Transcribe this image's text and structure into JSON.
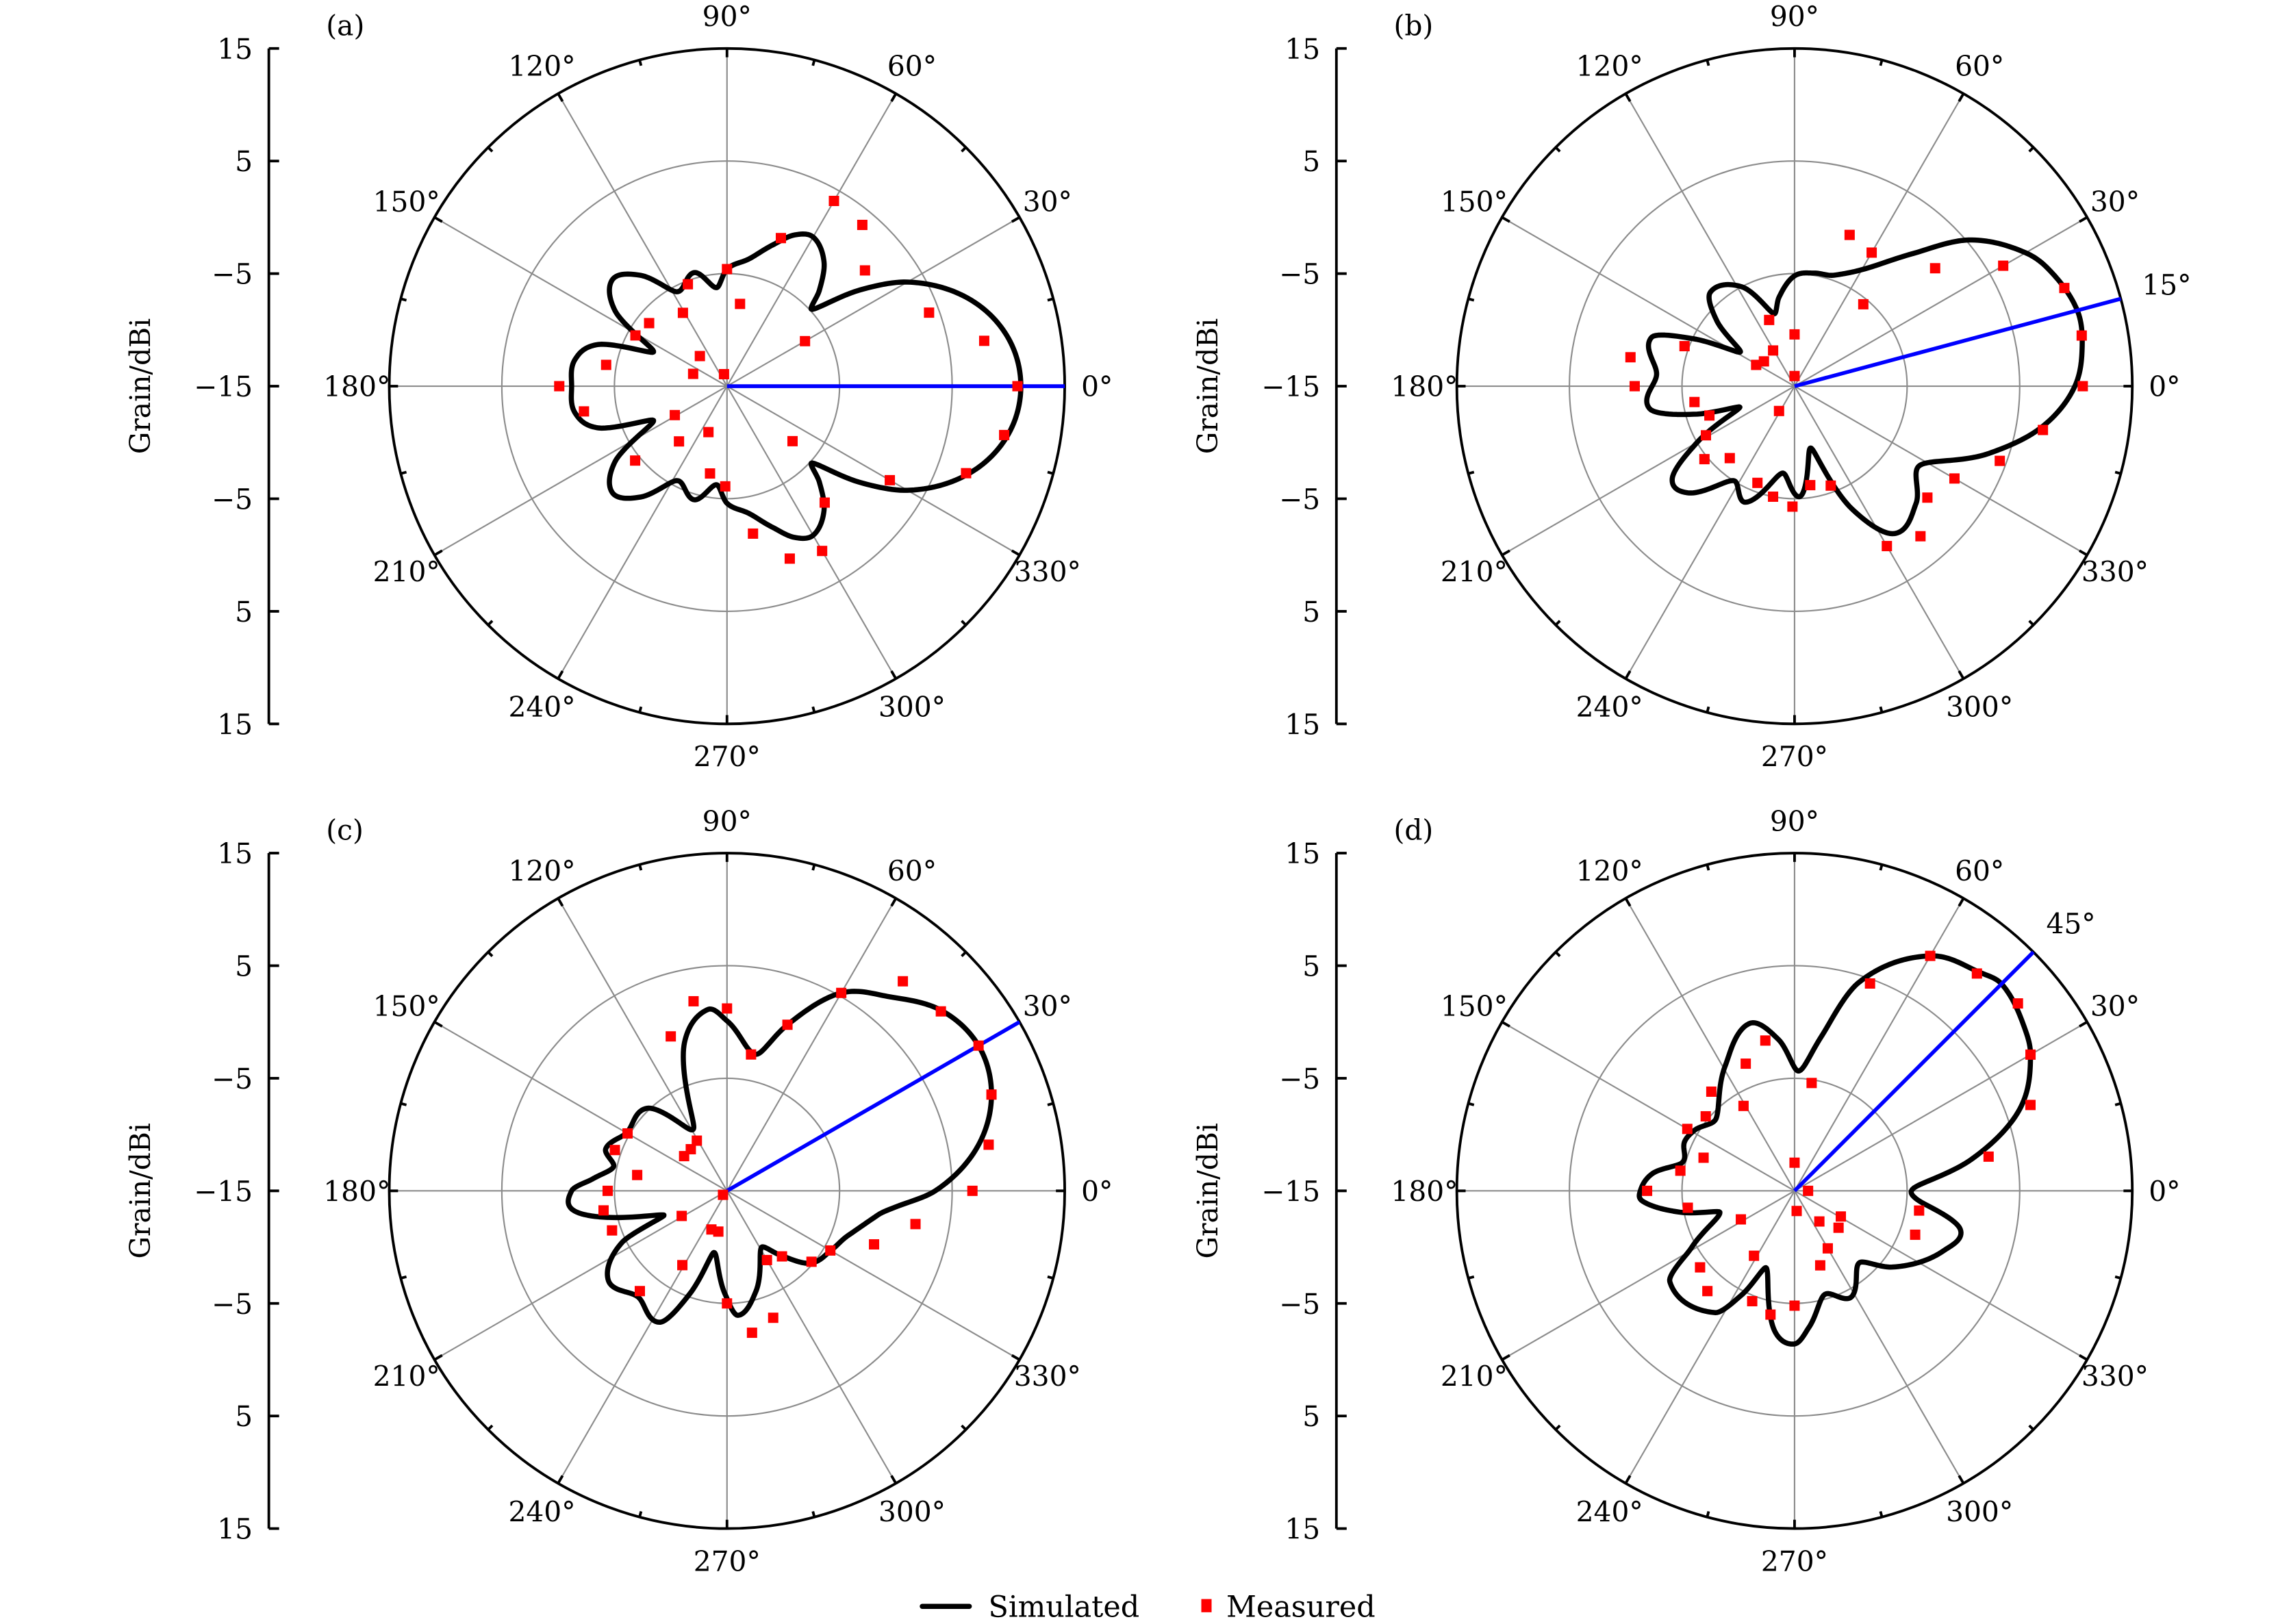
{
  "chart_data": {
    "type": "polar",
    "ylabel": "Grain/dBi",
    "radial_range": [
      -15,
      15
    ],
    "radial_ticks": [
      "15",
      "5",
      "−5",
      "−15",
      "−5",
      "5",
      "15"
    ],
    "angle_ticks": [
      "0°",
      "30°",
      "60°",
      "90°",
      "120°",
      "150°",
      "180°",
      "210°",
      "240°",
      "270°",
      "300°",
      "330°"
    ],
    "grid": true,
    "legend": {
      "position": "bottom-center",
      "entries": [
        "Simulated",
        "Measured"
      ]
    },
    "colors": {
      "simulated": "#000000",
      "measured": "#ff0000",
      "beam": "#0000ff",
      "grid": "#8c8c8c"
    },
    "panels": [
      {
        "label": "(a)",
        "beam_angle": 0,
        "beam_label": "",
        "simulated": [
          [
            0,
            11.1
          ],
          [
            10,
            10.3
          ],
          [
            20,
            7.8
          ],
          [
            30,
            3.5
          ],
          [
            36,
            -0.5
          ],
          [
            42,
            -4.8
          ],
          [
            46,
            -3.2
          ],
          [
            52,
            -1
          ],
          [
            60,
            0.3
          ],
          [
            66,
            -0.3
          ],
          [
            72,
            -1.8
          ],
          [
            80,
            -3.5
          ],
          [
            90,
            -4.6
          ],
          [
            96,
            -6.2
          ],
          [
            106,
            -4.5
          ],
          [
            118,
            -5.5
          ],
          [
            128,
            -2.5
          ],
          [
            137,
            -1.1
          ],
          [
            146,
            -3
          ],
          [
            155,
            -7.8
          ],
          [
            162,
            -3
          ],
          [
            170,
            -1.3
          ],
          [
            180,
            -1.2
          ],
          [
            190,
            -1.3
          ],
          [
            198,
            -3
          ],
          [
            205,
            -7.8
          ],
          [
            214,
            -3
          ],
          [
            223,
            -1.1
          ],
          [
            232,
            -2.5
          ],
          [
            242,
            -5.5
          ],
          [
            254,
            -4.5
          ],
          [
            264,
            -6.2
          ],
          [
            270,
            -4.6
          ],
          [
            280,
            -3.5
          ],
          [
            288,
            -1.8
          ],
          [
            294,
            -0.3
          ],
          [
            300,
            0.3
          ],
          [
            308,
            -1
          ],
          [
            314,
            -3.2
          ],
          [
            318,
            -4.8
          ],
          [
            324,
            -0.5
          ],
          [
            330,
            3.5
          ],
          [
            340,
            7.8
          ],
          [
            350,
            10.3
          ]
        ],
        "measured": [
          [
            60,
            4.0
          ],
          [
            50,
            3.7
          ],
          [
            40,
            1.0
          ],
          [
            20,
            4.1
          ],
          [
            10,
            8.2
          ],
          [
            0,
            10.8
          ],
          [
            350,
            10.0
          ],
          [
            340,
            7.6
          ],
          [
            330,
            1.7
          ],
          [
            300,
            1.9
          ],
          [
            290,
            1.3
          ],
          [
            280,
            -1.7
          ],
          [
            310,
            -1.5
          ],
          [
            320,
            -7.4
          ],
          [
            269,
            -6.1
          ],
          [
            259,
            -7.1
          ],
          [
            248,
            -10.6
          ],
          [
            229,
            -8.5
          ],
          [
            209,
            -9.7
          ],
          [
            219,
            -4.5
          ],
          [
            190,
            -2.1
          ],
          [
            180,
            -0.1
          ],
          [
            170,
            -4.1
          ],
          [
            160,
            -11.8
          ],
          [
            104,
            -13.9
          ],
          [
            132,
            -11.4
          ],
          [
            151,
            -5.7
          ],
          [
            141,
            -6.1
          ],
          [
            121,
            -7.4
          ],
          [
            111,
            -5.3
          ],
          [
            90,
            -4.6
          ],
          [
            81,
            -7.6
          ],
          [
            70,
            -1.0
          ],
          [
            30,
            -7.0
          ]
        ]
      },
      {
        "label": "(b)",
        "beam_angle": 15,
        "beam_label": "15°",
        "simulated": [
          [
            0,
            9.9
          ],
          [
            8,
            10.8
          ],
          [
            15,
            11
          ],
          [
            25,
            9.8
          ],
          [
            30,
            8.7
          ],
          [
            40,
            5.2
          ],
          [
            48,
            0.9
          ],
          [
            58,
            -2.6
          ],
          [
            70,
            -4.5
          ],
          [
            80,
            -4.8
          ],
          [
            90,
            -5.2
          ],
          [
            100,
            -7
          ],
          [
            106,
            -8.3
          ],
          [
            118,
            -5
          ],
          [
            132,
            -3.8
          ],
          [
            140,
            -6
          ],
          [
            148,
            -9.3
          ],
          [
            155,
            -5
          ],
          [
            161,
            -1.6
          ],
          [
            175,
            -2.7
          ],
          [
            189,
            -2
          ],
          [
            196,
            -6
          ],
          [
            201,
            -9.8
          ],
          [
            210,
            -5
          ],
          [
            217,
            -1.4
          ],
          [
            225,
            -1.6
          ],
          [
            237,
            -5
          ],
          [
            247,
            -3.8
          ],
          [
            262,
            -7.2
          ],
          [
            273,
            -5.2
          ],
          [
            285,
            -9.3
          ],
          [
            295,
            -3
          ],
          [
            304,
            0.8
          ],
          [
            316,
            0
          ],
          [
            328,
            -1.8
          ],
          [
            341,
            3.3
          ],
          [
            351,
            7.4
          ]
        ],
        "measured": [
          [
            70,
            -0.7
          ],
          [
            60,
            -1.3
          ],
          [
            40,
            1.3
          ],
          [
            30,
            6.4
          ],
          [
            20,
            10.5
          ],
          [
            10,
            10.9
          ],
          [
            0,
            10.6
          ],
          [
            350,
            7.4
          ],
          [
            340,
            4.4
          ],
          [
            330,
            1.4
          ],
          [
            320,
            0.4
          ],
          [
            310,
            2.4
          ],
          [
            300,
            1.4
          ],
          [
            50,
            -5.5
          ],
          [
            90,
            -10.4
          ],
          [
            90,
            -14.1
          ],
          [
            121,
            -11.3
          ],
          [
            111,
            -8.7
          ],
          [
            141,
            -11.5
          ],
          [
            151,
            -11.1
          ],
          [
            160,
            -4.6
          ],
          [
            170,
            -0.2
          ],
          [
            180,
            -0.8
          ],
          [
            189,
            -6.0
          ],
          [
            199,
            -7.0
          ],
          [
            209,
            -6.0
          ],
          [
            219,
            -4.7
          ],
          [
            228,
            -6.4
          ],
          [
            249,
            -5.8
          ],
          [
            259,
            -5.0
          ],
          [
            269,
            -4.3
          ],
          [
            279,
            -6.1
          ],
          [
            290,
            -5.6
          ],
          [
            238,
            -12.4
          ]
        ]
      },
      {
        "label": "(c)",
        "beam_angle": 30,
        "beam_label": "",
        "simulated": [
          [
            0,
            3.5
          ],
          [
            10,
            7.6
          ],
          [
            20,
            10
          ],
          [
            30,
            10.8
          ],
          [
            40,
            9.9
          ],
          [
            50,
            7.5
          ],
          [
            60,
            5.3
          ],
          [
            70,
            0.7
          ],
          [
            78,
            -2.6
          ],
          [
            90,
            0.1
          ],
          [
            96,
            1.2
          ],
          [
            106,
            -1.3
          ],
          [
            118,
            -8.7
          ],
          [
            134,
            -4.8
          ],
          [
            150,
            -4.7
          ],
          [
            161,
            -3.6
          ],
          [
            168,
            -4.7
          ],
          [
            175,
            -3
          ],
          [
            180,
            -1.2
          ],
          [
            188,
            -1.5
          ],
          [
            201,
            -9
          ],
          [
            206,
            -4.7
          ],
          [
            217,
            -1.8
          ],
          [
            230,
            -2.7
          ],
          [
            243,
            -1.9
          ],
          [
            250,
            -5.2
          ],
          [
            258,
            -9.4
          ],
          [
            269,
            -5.8
          ],
          [
            275,
            -3.9
          ],
          [
            286,
            -5.7
          ],
          [
            301,
            -9.1
          ],
          [
            310,
            -7.5
          ],
          [
            319,
            -5.2
          ],
          [
            331,
            -4.3
          ],
          [
            340,
            -3.5
          ],
          [
            351,
            -1.4
          ],
          [
            355,
            0.3
          ]
        ],
        "measured": [
          [
            50,
            9.3
          ],
          [
            40,
            9.8
          ],
          [
            30,
            10.8
          ],
          [
            20,
            10
          ],
          [
            10,
            8.6
          ],
          [
            0,
            6.8
          ],
          [
            350,
            2
          ],
          [
            340,
            -1.1
          ],
          [
            330,
            -4.4
          ],
          [
            320,
            -5.2
          ],
          [
            310,
            -7.4
          ],
          [
            300,
            -7.9
          ],
          [
            290,
            -3
          ],
          [
            280,
            -2.2
          ],
          [
            270,
            -5
          ],
          [
            258,
            -11.3
          ],
          [
            248,
            -11.3
          ],
          [
            239,
            -7.3
          ],
          [
            229,
            -3.2
          ],
          [
            209,
            -10.4
          ],
          [
            199,
            -4.2
          ],
          [
            189,
            -3.9
          ],
          [
            180,
            -4.4
          ],
          [
            170,
            -6.9
          ],
          [
            160,
            -4.4
          ],
          [
            150,
            -4.8
          ],
          [
            141,
            -10.1
          ],
          [
            131,
            -10.1
          ],
          [
            121,
            -9.8
          ],
          [
            110,
            -0.4
          ],
          [
            100,
            2.1
          ],
          [
            90,
            1.2
          ],
          [
            80,
            -2.7
          ],
          [
            70,
            0.7
          ],
          [
            60,
            5.3
          ],
          [
            225,
            -14.5
          ]
        ]
      },
      {
        "label": "(d)",
        "beam_angle": 45,
        "beam_label": "45°",
        "simulated": [
          [
            2,
            -4.2
          ],
          [
            10,
            0.9
          ],
          [
            20,
            6.3
          ],
          [
            30,
            9.2
          ],
          [
            35,
            10
          ],
          [
            45,
            11
          ],
          [
            50,
            10.4
          ],
          [
            60,
            9.1
          ],
          [
            73,
            4.3
          ],
          [
            80,
            -1
          ],
          [
            88,
            -4.35
          ],
          [
            96,
            -1.5
          ],
          [
            105,
            0.4
          ],
          [
            119,
            -2.3
          ],
          [
            137,
            -5.5
          ],
          [
            149,
            -4.6
          ],
          [
            156,
            -4.3
          ],
          [
            166,
            -4.7
          ],
          [
            173,
            -2.3
          ],
          [
            180,
            -1.3
          ],
          [
            184,
            -1.5
          ],
          [
            191,
            -4.9
          ],
          [
            196,
            -8.1
          ],
          [
            209,
            -4.5
          ],
          [
            216,
            -1.3
          ],
          [
            237,
            -2.1
          ],
          [
            243,
            -4.6
          ],
          [
            250,
            -7.7
          ],
          [
            262,
            -2.4
          ],
          [
            270,
            -1.4
          ],
          [
            276,
            -2.8
          ],
          [
            286,
            -5.4
          ],
          [
            298,
            -4.3
          ],
          [
            312,
            -6.4
          ],
          [
            322,
            -4
          ],
          [
            338,
            -0.75
          ],
          [
            347,
            0.1
          ],
          [
            356,
            -4.1
          ]
        ],
        "measured": [
          [
            60,
            9.1
          ],
          [
            50,
            10.2
          ],
          [
            40,
            10.9
          ],
          [
            30,
            9.2
          ],
          [
            20,
            7.3
          ],
          [
            10,
            2.5
          ],
          [
            351,
            -3.8
          ],
          [
            340,
            -3.6
          ],
          [
            331,
            -10.3
          ],
          [
            320,
            -9.9
          ],
          [
            309,
            -11.5
          ],
          [
            300,
            -9.1
          ],
          [
            289,
            -8
          ],
          [
            276,
            -13.2
          ],
          [
            270,
            -4.8
          ],
          [
            259,
            -3.8
          ],
          [
            249,
            -4.5
          ],
          [
            238,
            -8.2
          ],
          [
            229,
            -3.2
          ],
          [
            219,
            -4.2
          ],
          [
            208,
            -9.6
          ],
          [
            189,
            -5.4
          ],
          [
            180,
            -1.9
          ],
          [
            170,
            -4.7
          ],
          [
            160,
            -6.4
          ],
          [
            150,
            -4
          ],
          [
            140,
            -4.7
          ],
          [
            130,
            -3.5
          ],
          [
            121,
            -6.2
          ],
          [
            111,
            -2.9
          ],
          [
            101,
            -1.4
          ],
          [
            81,
            -5.3
          ],
          [
            90,
            -12.5
          ],
          [
            70,
            4.6
          ],
          [
            0,
            -13.8
          ]
        ]
      }
    ]
  }
}
